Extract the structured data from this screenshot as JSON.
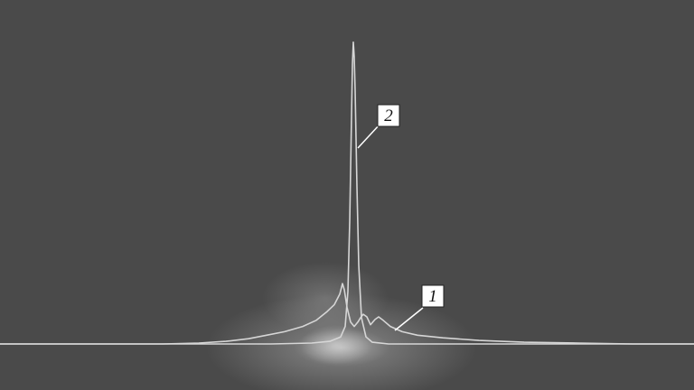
{
  "chart_data": {
    "type": "line",
    "title": "",
    "xlabel": "",
    "ylabel": "",
    "grid": false,
    "legend": "none",
    "xlim": [
      0,
      768
    ],
    "ylim": [
      0,
      356
    ],
    "colors": {
      "background": "#4a4a4a",
      "curve": "#d6d6d6",
      "label_box": "#ffffff",
      "label_text": "#111111",
      "glow": "#ffffff"
    },
    "series": [
      {
        "label": "1",
        "points": [
          [
            0,
            0
          ],
          [
            180,
            0
          ],
          [
            220,
            1
          ],
          [
            250,
            3
          ],
          [
            275,
            6
          ],
          [
            295,
            10
          ],
          [
            315,
            14
          ],
          [
            335,
            20
          ],
          [
            350,
            27
          ],
          [
            362,
            37
          ],
          [
            370,
            45
          ],
          [
            376,
            57
          ],
          [
            379,
            69
          ],
          [
            381,
            62
          ],
          [
            384,
            42
          ],
          [
            388,
            25
          ],
          [
            392,
            20
          ],
          [
            396,
            25
          ],
          [
            399,
            30
          ],
          [
            402,
            34
          ],
          [
            406,
            31
          ],
          [
            410,
            22
          ],
          [
            415,
            28
          ],
          [
            419,
            31
          ],
          [
            424,
            27
          ],
          [
            432,
            20
          ],
          [
            445,
            14
          ],
          [
            462,
            10
          ],
          [
            490,
            7
          ],
          [
            530,
            4
          ],
          [
            580,
            2
          ],
          [
            640,
            1
          ],
          [
            700,
            0
          ],
          [
            768,
            0
          ]
        ]
      },
      {
        "label": "2",
        "points": [
          [
            0,
            0
          ],
          [
            300,
            0
          ],
          [
            345,
            1
          ],
          [
            365,
            3
          ],
          [
            377,
            8
          ],
          [
            382,
            20
          ],
          [
            385,
            60
          ],
          [
            387,
            140
          ],
          [
            389,
            260
          ],
          [
            390,
            320
          ],
          [
            391,
            345
          ],
          [
            392,
            328
          ],
          [
            393,
            290
          ],
          [
            395,
            180
          ],
          [
            397,
            90
          ],
          [
            400,
            30
          ],
          [
            405,
            8
          ],
          [
            412,
            2
          ],
          [
            430,
            0
          ],
          [
            768,
            0
          ]
        ]
      }
    ]
  }
}
